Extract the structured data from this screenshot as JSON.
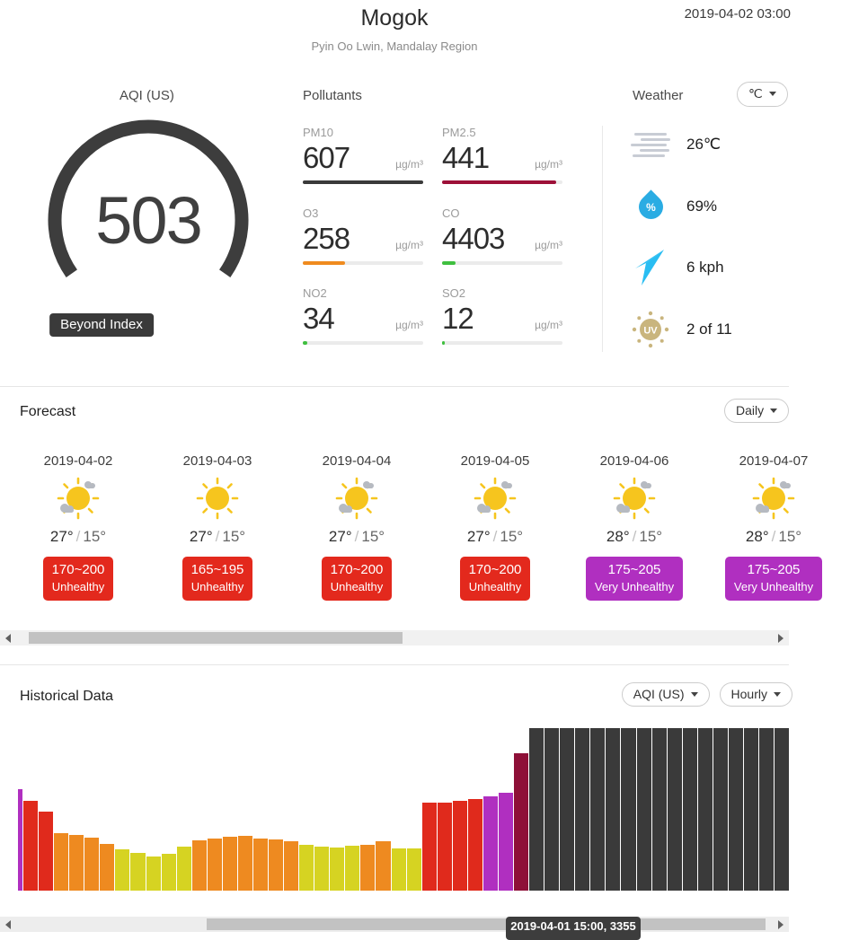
{
  "header": {
    "title": "Mogok",
    "subtitle": "Pyin Oo Lwin, Mandalay Region",
    "timestamp": "2019-04-02 03:00"
  },
  "aqi": {
    "label": "AQI (US)",
    "value": "503",
    "status": "Beyond Index",
    "gauge_color": "#3d3d3d"
  },
  "pollutants": {
    "title": "Pollutants",
    "unit": "µg/m³",
    "items": [
      {
        "name": "PM10",
        "value": "607",
        "fill_pct": 100,
        "color": "#3a3a3a"
      },
      {
        "name": "PM2.5",
        "value": "441",
        "fill_pct": 95,
        "color": "#9d1038"
      },
      {
        "name": "O3",
        "value": "258",
        "fill_pct": 35,
        "color": "#ef8b1f"
      },
      {
        "name": "CO",
        "value": "4403",
        "fill_pct": 11,
        "color": "#3fbf3f"
      },
      {
        "name": "NO2",
        "value": "34",
        "fill_pct": 4,
        "color": "#3fbf3f"
      },
      {
        "name": "SO2",
        "value": "12",
        "fill_pct": 2,
        "color": "#3fbf3f"
      }
    ]
  },
  "weather": {
    "title": "Weather",
    "unit_selector": "℃",
    "rows": [
      {
        "icon": "fog-icon",
        "value": "26℃"
      },
      {
        "icon": "humidity-icon",
        "value": "69%"
      },
      {
        "icon": "wind-icon",
        "value": "6 kph"
      },
      {
        "icon": "uv-icon",
        "value": "2 of 11",
        "uv_text": "UV"
      }
    ]
  },
  "forecast": {
    "title": "Forecast",
    "range_selector": "Daily",
    "days": [
      {
        "date": "2019-04-02",
        "icon": "partly-sunny",
        "high": "27°",
        "low": "15°",
        "aqi_range": "170~200",
        "aqi_label": "Unhealthy",
        "badge_color": "#e3291d"
      },
      {
        "date": "2019-04-03",
        "icon": "sunny",
        "high": "27°",
        "low": "15°",
        "aqi_range": "165~195",
        "aqi_label": "Unhealthy",
        "badge_color": "#e3291d"
      },
      {
        "date": "2019-04-04",
        "icon": "partly-sunny",
        "high": "27°",
        "low": "15°",
        "aqi_range": "170~200",
        "aqi_label": "Unhealthy",
        "badge_color": "#e3291d"
      },
      {
        "date": "2019-04-05",
        "icon": "partly-sunny",
        "high": "27°",
        "low": "15°",
        "aqi_range": "170~200",
        "aqi_label": "Unhealthy",
        "badge_color": "#e3291d"
      },
      {
        "date": "2019-04-06",
        "icon": "partly-sunny",
        "high": "28°",
        "low": "15°",
        "aqi_range": "175~205",
        "aqi_label": "Very Unhealthy",
        "badge_color": "#b02fc0"
      },
      {
        "date": "2019-04-07",
        "icon": "partly-sunny",
        "high": "28°",
        "low": "15°",
        "aqi_range": "175~205",
        "aqi_label": "Very Unhealthy",
        "badge_color": "#b02fc0"
      }
    ]
  },
  "historical": {
    "title": "Historical Data",
    "metric_selector": "AQI (US)",
    "interval_selector": "Hourly",
    "tooltip": "2019-04-01 15:00, 3355"
  },
  "chart_data": {
    "type": "bar",
    "title": "Historical Data",
    "metric": "AQI (US)",
    "interval": "Hourly",
    "highlighted_point": {
      "label": "2019-04-01 15:00",
      "value": 3355
    },
    "palette": {
      "purple": "#b02fc0",
      "red": "#e02a1c",
      "orange": "#ee8a20",
      "yellow": "#d6d322",
      "maroon": "#8e1038",
      "dark": "#3a3a3a"
    },
    "bars": [
      {
        "h": 113,
        "c": "purple",
        "w": 5
      },
      {
        "h": 100,
        "c": "red"
      },
      {
        "h": 88,
        "c": "red"
      },
      {
        "h": 64,
        "c": "orange"
      },
      {
        "h": 62,
        "c": "orange"
      },
      {
        "h": 59,
        "c": "orange"
      },
      {
        "h": 52,
        "c": "orange"
      },
      {
        "h": 46,
        "c": "yellow"
      },
      {
        "h": 42,
        "c": "yellow"
      },
      {
        "h": 38,
        "c": "yellow"
      },
      {
        "h": 41,
        "c": "yellow"
      },
      {
        "h": 49,
        "c": "yellow"
      },
      {
        "h": 56,
        "c": "orange"
      },
      {
        "h": 58,
        "c": "orange"
      },
      {
        "h": 60,
        "c": "orange"
      },
      {
        "h": 61,
        "c": "orange"
      },
      {
        "h": 58,
        "c": "orange"
      },
      {
        "h": 57,
        "c": "orange"
      },
      {
        "h": 55,
        "c": "orange"
      },
      {
        "h": 51,
        "c": "yellow"
      },
      {
        "h": 49,
        "c": "yellow"
      },
      {
        "h": 48,
        "c": "yellow"
      },
      {
        "h": 50,
        "c": "yellow"
      },
      {
        "h": 51,
        "c": "orange"
      },
      {
        "h": 55,
        "c": "orange"
      },
      {
        "h": 47,
        "c": "yellow"
      },
      {
        "h": 47,
        "c": "yellow"
      },
      {
        "h": 98,
        "c": "red"
      },
      {
        "h": 98,
        "c": "red"
      },
      {
        "h": 100,
        "c": "red"
      },
      {
        "h": 102,
        "c": "red"
      },
      {
        "h": 105,
        "c": "purple"
      },
      {
        "h": 109,
        "c": "purple"
      },
      {
        "h": 153,
        "c": "maroon"
      },
      {
        "h": 181,
        "c": "dark"
      },
      {
        "h": 181,
        "c": "dark"
      },
      {
        "h": 181,
        "c": "dark"
      },
      {
        "h": 181,
        "c": "dark"
      },
      {
        "h": 181,
        "c": "dark"
      },
      {
        "h": 181,
        "c": "dark"
      },
      {
        "h": 181,
        "c": "dark"
      },
      {
        "h": 181,
        "c": "dark"
      },
      {
        "h": 181,
        "c": "dark"
      },
      {
        "h": 181,
        "c": "dark"
      },
      {
        "h": 181,
        "c": "dark"
      },
      {
        "h": 181,
        "c": "dark"
      },
      {
        "h": 181,
        "c": "dark"
      },
      {
        "h": 181,
        "c": "dark"
      },
      {
        "h": 181,
        "c": "dark"
      },
      {
        "h": 181,
        "c": "dark"
      },
      {
        "h": 181,
        "c": "dark"
      }
    ]
  }
}
